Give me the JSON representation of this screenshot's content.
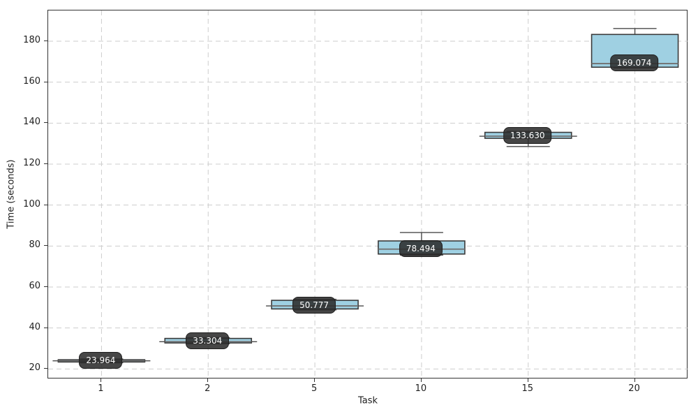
{
  "chart_data": {
    "type": "box",
    "title": "",
    "xlabel": "Task",
    "ylabel": "Time (seconds)",
    "categories": [
      "1",
      "2",
      "5",
      "10",
      "15",
      "20"
    ],
    "y_ticks": [
      20,
      40,
      60,
      80,
      100,
      120,
      140,
      160,
      180
    ],
    "ylim": [
      15,
      195
    ],
    "grid": "dashed, both axes",
    "legend": "none",
    "boxes": [
      {
        "category": "1",
        "whisker_low": 23.0,
        "q1": 23.4,
        "median": 23.964,
        "q3": 24.5,
        "whisker_high": 24.9,
        "label": "23.964"
      },
      {
        "category": "2",
        "whisker_low": 32.3,
        "q1": 32.7,
        "median": 33.304,
        "q3": 34.9,
        "whisker_high": 35.3,
        "label": "33.304"
      },
      {
        "category": "5",
        "whisker_low": 48.8,
        "q1": 49.3,
        "median": 50.777,
        "q3": 53.5,
        "whisker_high": 54.0,
        "label": "50.777"
      },
      {
        "category": "10",
        "whisker_low": 75.6,
        "q1": 76.1,
        "median": 78.494,
        "q3": 82.5,
        "whisker_high": 86.6,
        "label": "78.494"
      },
      {
        "category": "15",
        "whisker_low": 128.6,
        "q1": 132.6,
        "median": 133.63,
        "q3": 135.5,
        "whisker_high": 136.0,
        "label": "133.630"
      },
      {
        "category": "20",
        "whisker_low": 166.9,
        "q1": 167.3,
        "median": 169.074,
        "q3": 183.3,
        "whisker_high": 186.2,
        "label": "169.074"
      }
    ],
    "colors": {
      "box_fill": "#9fd0e2",
      "box_edge": "#3a3a3a",
      "median_line": "#707070",
      "whisker": "#4a4a4a",
      "grid": "#cdcdcd",
      "spine": "#333333",
      "text": "#1f1f1f",
      "badge_bg": "rgba(44,44,44,0.88)",
      "badge_text": "#ffffff"
    }
  }
}
